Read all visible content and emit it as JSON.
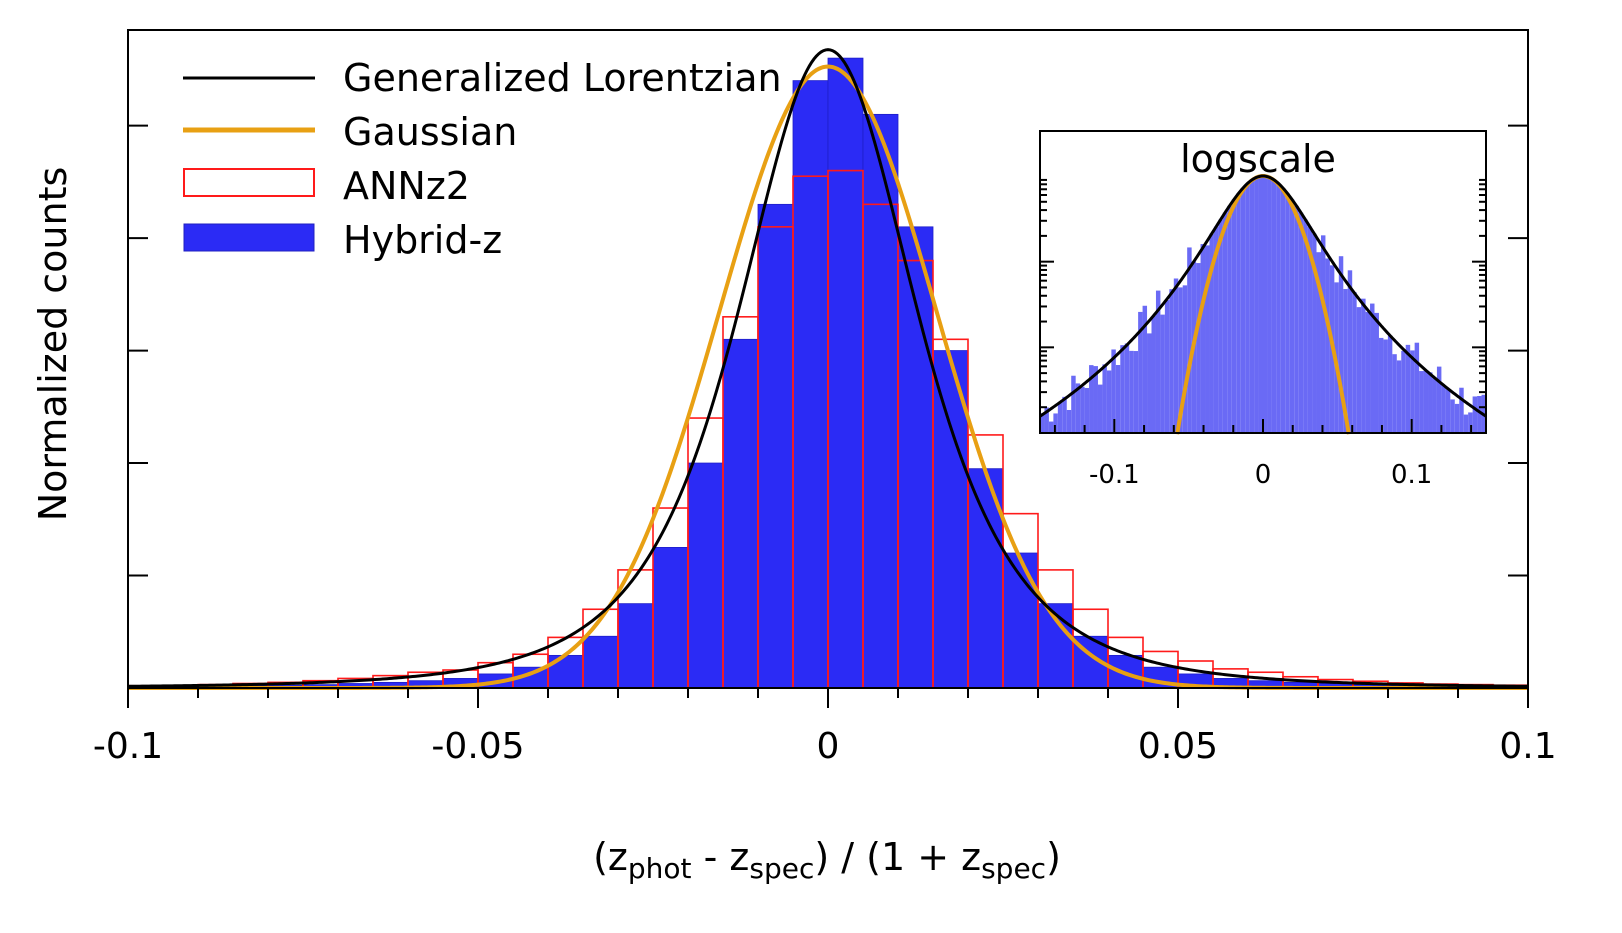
{
  "chart_data": [
    {
      "type": "histogram",
      "panel": "main",
      "xlabel_parts": [
        {
          "text": "(z",
          "sub": false
        },
        {
          "text": "phot",
          "sub": true
        },
        {
          "text": " - z",
          "sub": false
        },
        {
          "text": "spec",
          "sub": true
        },
        {
          "text": ") / (1 + z",
          "sub": false
        },
        {
          "text": "spec",
          "sub": true
        },
        {
          "text": ")",
          "sub": false
        }
      ],
      "ylabel": "Normalized counts",
      "xlim": [
        -0.1,
        0.1
      ],
      "ylim": [
        0,
        1.17
      ],
      "xticks": [
        -0.1,
        -0.05,
        0,
        0.05,
        0.1
      ],
      "xtick_labels": [
        "-0.1",
        "-0.05",
        "0",
        "0.05",
        "0.1"
      ],
      "xminor_step": 0.01,
      "yticks": [
        0.2,
        0.4,
        0.6,
        0.8,
        1.0
      ],
      "bin_width": 0.005,
      "legend": {
        "position": "top-left",
        "entries": [
          {
            "label": "Generalized Lorentzian",
            "style": "line",
            "color": "#000000"
          },
          {
            "label": "Gaussian",
            "style": "line",
            "color": "#e8a013"
          },
          {
            "label": "ANNz2",
            "style": "step-outline",
            "color": "#ff1a1a"
          },
          {
            "label": "Hybrid-z",
            "style": "filled",
            "color": "#2b2bf5"
          }
        ]
      },
      "series": [
        {
          "name": "Hybrid-z",
          "color": "#2b2bf5",
          "bin_left": [
            -0.1,
            -0.095,
            -0.09,
            -0.085,
            -0.08,
            -0.075,
            -0.07,
            -0.065,
            -0.06,
            -0.055,
            -0.05,
            -0.045,
            -0.04,
            -0.035,
            -0.03,
            -0.025,
            -0.02,
            -0.015,
            -0.01,
            -0.005,
            0,
            0.005,
            0.01,
            0.015,
            0.02,
            0.025,
            0.03,
            0.035,
            0.04,
            0.045,
            0.05,
            0.055,
            0.06,
            0.065,
            0.07,
            0.075,
            0.08,
            0.085,
            0.09,
            0.095
          ],
          "values": [
            0.002,
            0.002,
            0.003,
            0.004,
            0.005,
            0.006,
            0.008,
            0.01,
            0.013,
            0.017,
            0.025,
            0.037,
            0.058,
            0.092,
            0.15,
            0.25,
            0.4,
            0.62,
            0.86,
            1.08,
            1.12,
            1.02,
            0.82,
            0.6,
            0.39,
            0.24,
            0.15,
            0.092,
            0.058,
            0.037,
            0.025,
            0.017,
            0.013,
            0.01,
            0.008,
            0.006,
            0.005,
            0.004,
            0.003,
            0.002
          ]
        },
        {
          "name": "ANNz2",
          "color": "#ff1a1a",
          "bin_left": [
            -0.1,
            -0.095,
            -0.09,
            -0.085,
            -0.08,
            -0.075,
            -0.07,
            -0.065,
            -0.06,
            -0.055,
            -0.05,
            -0.045,
            -0.04,
            -0.035,
            -0.03,
            -0.025,
            -0.02,
            -0.015,
            -0.01,
            -0.005,
            0,
            0.005,
            0.01,
            0.015,
            0.02,
            0.025,
            0.03,
            0.035,
            0.04,
            0.045,
            0.05,
            0.055,
            0.06,
            0.065,
            0.07,
            0.075,
            0.08,
            0.085,
            0.09,
            0.095
          ],
          "values": [
            0.004,
            0.004,
            0.006,
            0.008,
            0.01,
            0.013,
            0.017,
            0.022,
            0.028,
            0.032,
            0.045,
            0.06,
            0.09,
            0.14,
            0.21,
            0.32,
            0.48,
            0.66,
            0.82,
            0.91,
            0.92,
            0.86,
            0.76,
            0.62,
            0.45,
            0.31,
            0.21,
            0.14,
            0.09,
            0.065,
            0.048,
            0.034,
            0.028,
            0.02,
            0.015,
            0.012,
            0.009,
            0.007,
            0.006,
            0.005
          ]
        }
      ],
      "curves": [
        {
          "name": "Generalized Lorentzian",
          "color": "#000000",
          "peak": 1.135,
          "sigma": 0.0165,
          "exponent": 2.5
        },
        {
          "name": "Gaussian",
          "color": "#e8a013",
          "peak": 1.105,
          "sigma": 0.0155
        }
      ]
    },
    {
      "type": "histogram",
      "panel": "inset",
      "title": "logscale",
      "yscale": "log",
      "xlim": [
        -0.15,
        0.15
      ],
      "xticks": [
        -0.1,
        0,
        0.1
      ],
      "xtick_labels": [
        "-0.1",
        "0",
        "0.1"
      ],
      "ylim_log10": [
        -3.0,
        0.0
      ],
      "series": [
        {
          "name": "Hybrid-z",
          "color": "#6a6af5",
          "bin_width": 0.003,
          "distribution": "generalized-lorentzian",
          "sigma": 0.0165,
          "exponent": 2.5,
          "noisy_tails": true
        }
      ],
      "curves": [
        {
          "name": "Generalized Lorentzian",
          "color": "#000000",
          "sigma": 0.0165,
          "exponent": 2.5
        },
        {
          "name": "Gaussian",
          "color": "#e8a013",
          "sigma": 0.0155
        }
      ]
    }
  ]
}
